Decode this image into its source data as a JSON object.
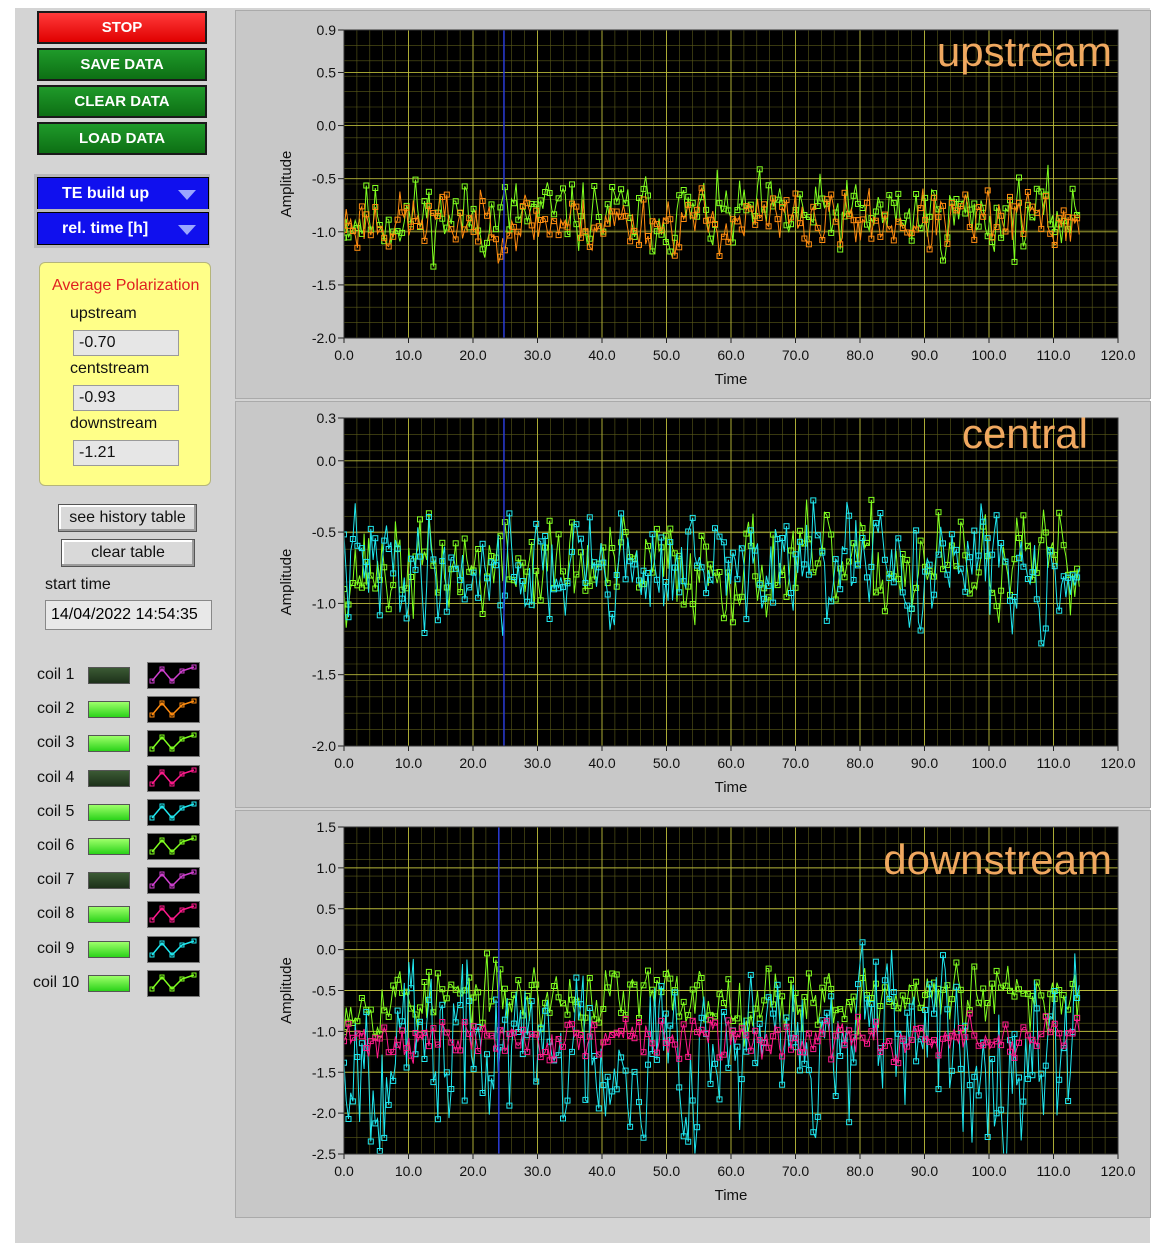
{
  "buttons": {
    "stop": "STOP",
    "save": "SAVE DATA",
    "clear": "CLEAR DATA",
    "load": "LOAD DATA"
  },
  "selectors": {
    "mode": "TE build up",
    "time_axis": "rel. time [h]"
  },
  "average_polarization": {
    "title": "Average Polarization",
    "upstream_label": "upstream",
    "upstream_value": "-0.70",
    "centstream_label": "centstream",
    "centstream_value": "-0.93",
    "downstream_label": "downstream",
    "downstream_value": "-1.21"
  },
  "table_buttons": {
    "history": "see history table",
    "clear": "clear table"
  },
  "start_time": {
    "label": "start time",
    "value": "14/04/2022 14:54:35"
  },
  "coils": [
    {
      "label": "coil 1",
      "led": "off",
      "plot_color": "#d040d0"
    },
    {
      "label": "coil 2",
      "led": "on",
      "plot_color": "#ff8c10"
    },
    {
      "label": "coil 3",
      "led": "on",
      "plot_color": "#80ff20"
    },
    {
      "label": "coil 4",
      "led": "off",
      "plot_color": "#ff1a8c"
    },
    {
      "label": "coil 5",
      "led": "on",
      "plot_color": "#20e8f0"
    },
    {
      "label": "coil 6",
      "led": "on",
      "plot_color": "#80ff20"
    },
    {
      "label": "coil 7",
      "led": "off",
      "plot_color": "#d040d0"
    },
    {
      "label": "coil 8",
      "led": "on",
      "plot_color": "#ff1a8c"
    },
    {
      "label": "coil 9",
      "led": "on",
      "plot_color": "#20e8f0"
    },
    {
      "label": "coil 10",
      "led": "on",
      "plot_color": "#80ff20"
    }
  ],
  "chart_data": [
    {
      "type": "scatter",
      "title": "upstream",
      "xlabel": "Time",
      "ylabel": "Amplitude",
      "xlim": [
        0,
        120
      ],
      "ylim": [
        -2.0,
        0.9
      ],
      "xticks": [
        "0.0",
        "10.0",
        "20.0",
        "30.0",
        "40.0",
        "50.0",
        "60.0",
        "70.0",
        "80.0",
        "90.0",
        "100.0",
        "110.0",
        "120.0"
      ],
      "yticks": [
        "0.9",
        "0.5",
        "0.0",
        "-0.5",
        "-1.0",
        "-1.5",
        "-2.0"
      ],
      "ytick_values": [
        0.9,
        0.5,
        0.0,
        -0.5,
        -1.0,
        -1.5,
        -2.0
      ],
      "grid": true,
      "cursor_x": 24.8,
      "series": [
        {
          "color": "#80ff20",
          "x_range": [
            0,
            114
          ],
          "mean": -0.85,
          "spread": 0.25,
          "seed": 11
        },
        {
          "color": "#ff8c10",
          "x_range": [
            0,
            114
          ],
          "mean": -0.9,
          "spread": 0.2,
          "seed": 23
        }
      ]
    },
    {
      "type": "scatter",
      "title": "central",
      "xlabel": "Time",
      "ylabel": "Amplitude",
      "xlim": [
        0,
        120
      ],
      "ylim": [
        -2.0,
        0.3
      ],
      "xticks": [
        "0.0",
        "10.0",
        "20.0",
        "30.0",
        "40.0",
        "50.0",
        "60.0",
        "70.0",
        "80.0",
        "90.0",
        "100.0",
        "110.0",
        "120.0"
      ],
      "yticks": [
        "0.3",
        "0.0",
        "-0.5",
        "-1.0",
        "-1.5",
        "-2.0"
      ],
      "ytick_values": [
        0.3,
        0.0,
        -0.5,
        -1.0,
        -1.5,
        -2.0
      ],
      "grid": true,
      "cursor_x": 24.8,
      "series": [
        {
          "color": "#80ff20",
          "x_range": [
            0,
            114
          ],
          "mean": -0.75,
          "spread": 0.25,
          "seed": 37
        },
        {
          "color": "#20e8f0",
          "x_range": [
            0,
            114
          ],
          "mean": -0.75,
          "spread": 0.28,
          "seed": 41
        }
      ]
    },
    {
      "type": "scatter",
      "title": "downstream",
      "xlabel": "Time",
      "ylabel": "Amplitude",
      "xlim": [
        0,
        120
      ],
      "ylim": [
        -2.5,
        1.5
      ],
      "xticks": [
        "0.0",
        "10.0",
        "20.0",
        "30.0",
        "40.0",
        "50.0",
        "60.0",
        "70.0",
        "80.0",
        "90.0",
        "100.0",
        "110.0",
        "120.0"
      ],
      "yticks": [
        "1.5",
        "1.0",
        "0.5",
        "0.0",
        "-0.5",
        "-1.0",
        "-1.5",
        "-2.0",
        "-2.5"
      ],
      "ytick_values": [
        1.5,
        1.0,
        0.5,
        0.0,
        -0.5,
        -1.0,
        -1.5,
        -2.0,
        -2.5
      ],
      "grid": true,
      "cursor_x": 24.0,
      "series": [
        {
          "color": "#80ff20",
          "x_range": [
            0,
            114
          ],
          "mean": -0.6,
          "spread": 0.3,
          "seed": 53
        },
        {
          "color": "#20e8f0",
          "x_range": [
            0,
            114
          ],
          "mean": -1.2,
          "spread": 0.75,
          "seed": 67
        },
        {
          "color": "#ff1a8c",
          "x_range": [
            0,
            114
          ],
          "mean": -1.1,
          "spread": 0.18,
          "seed": 71
        }
      ]
    }
  ]
}
